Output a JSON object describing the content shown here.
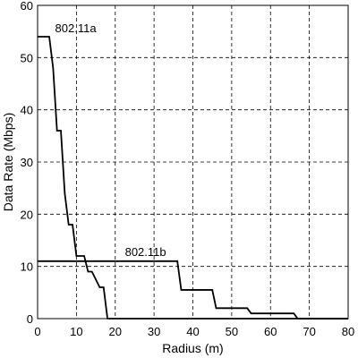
{
  "chart_data": {
    "type": "line",
    "xlabel": "Radius (m)",
    "ylabel": "Data Rate (Mbps)",
    "xlim": [
      0,
      80
    ],
    "ylim": [
      0,
      60
    ],
    "xticks": [
      0,
      10,
      20,
      30,
      40,
      50,
      60,
      70,
      80
    ],
    "yticks": [
      0,
      10,
      20,
      30,
      40,
      50,
      60
    ],
    "grid": true,
    "series": [
      {
        "name": "802.11a",
        "x": [
          0,
          3,
          4,
          5,
          6,
          7,
          8,
          9,
          10,
          11,
          12,
          13,
          14,
          16,
          17,
          18,
          80
        ],
        "y": [
          54,
          54,
          48,
          36,
          36,
          24,
          18,
          18,
          12,
          12,
          12,
          9,
          9,
          6,
          6,
          0,
          0
        ]
      },
      {
        "name": "802.11b",
        "x": [
          0,
          36,
          37,
          45,
          46,
          54,
          55,
          66,
          67,
          80
        ],
        "y": [
          11,
          11,
          5.5,
          5.5,
          2,
          2,
          1,
          1,
          0,
          0
        ]
      }
    ]
  }
}
